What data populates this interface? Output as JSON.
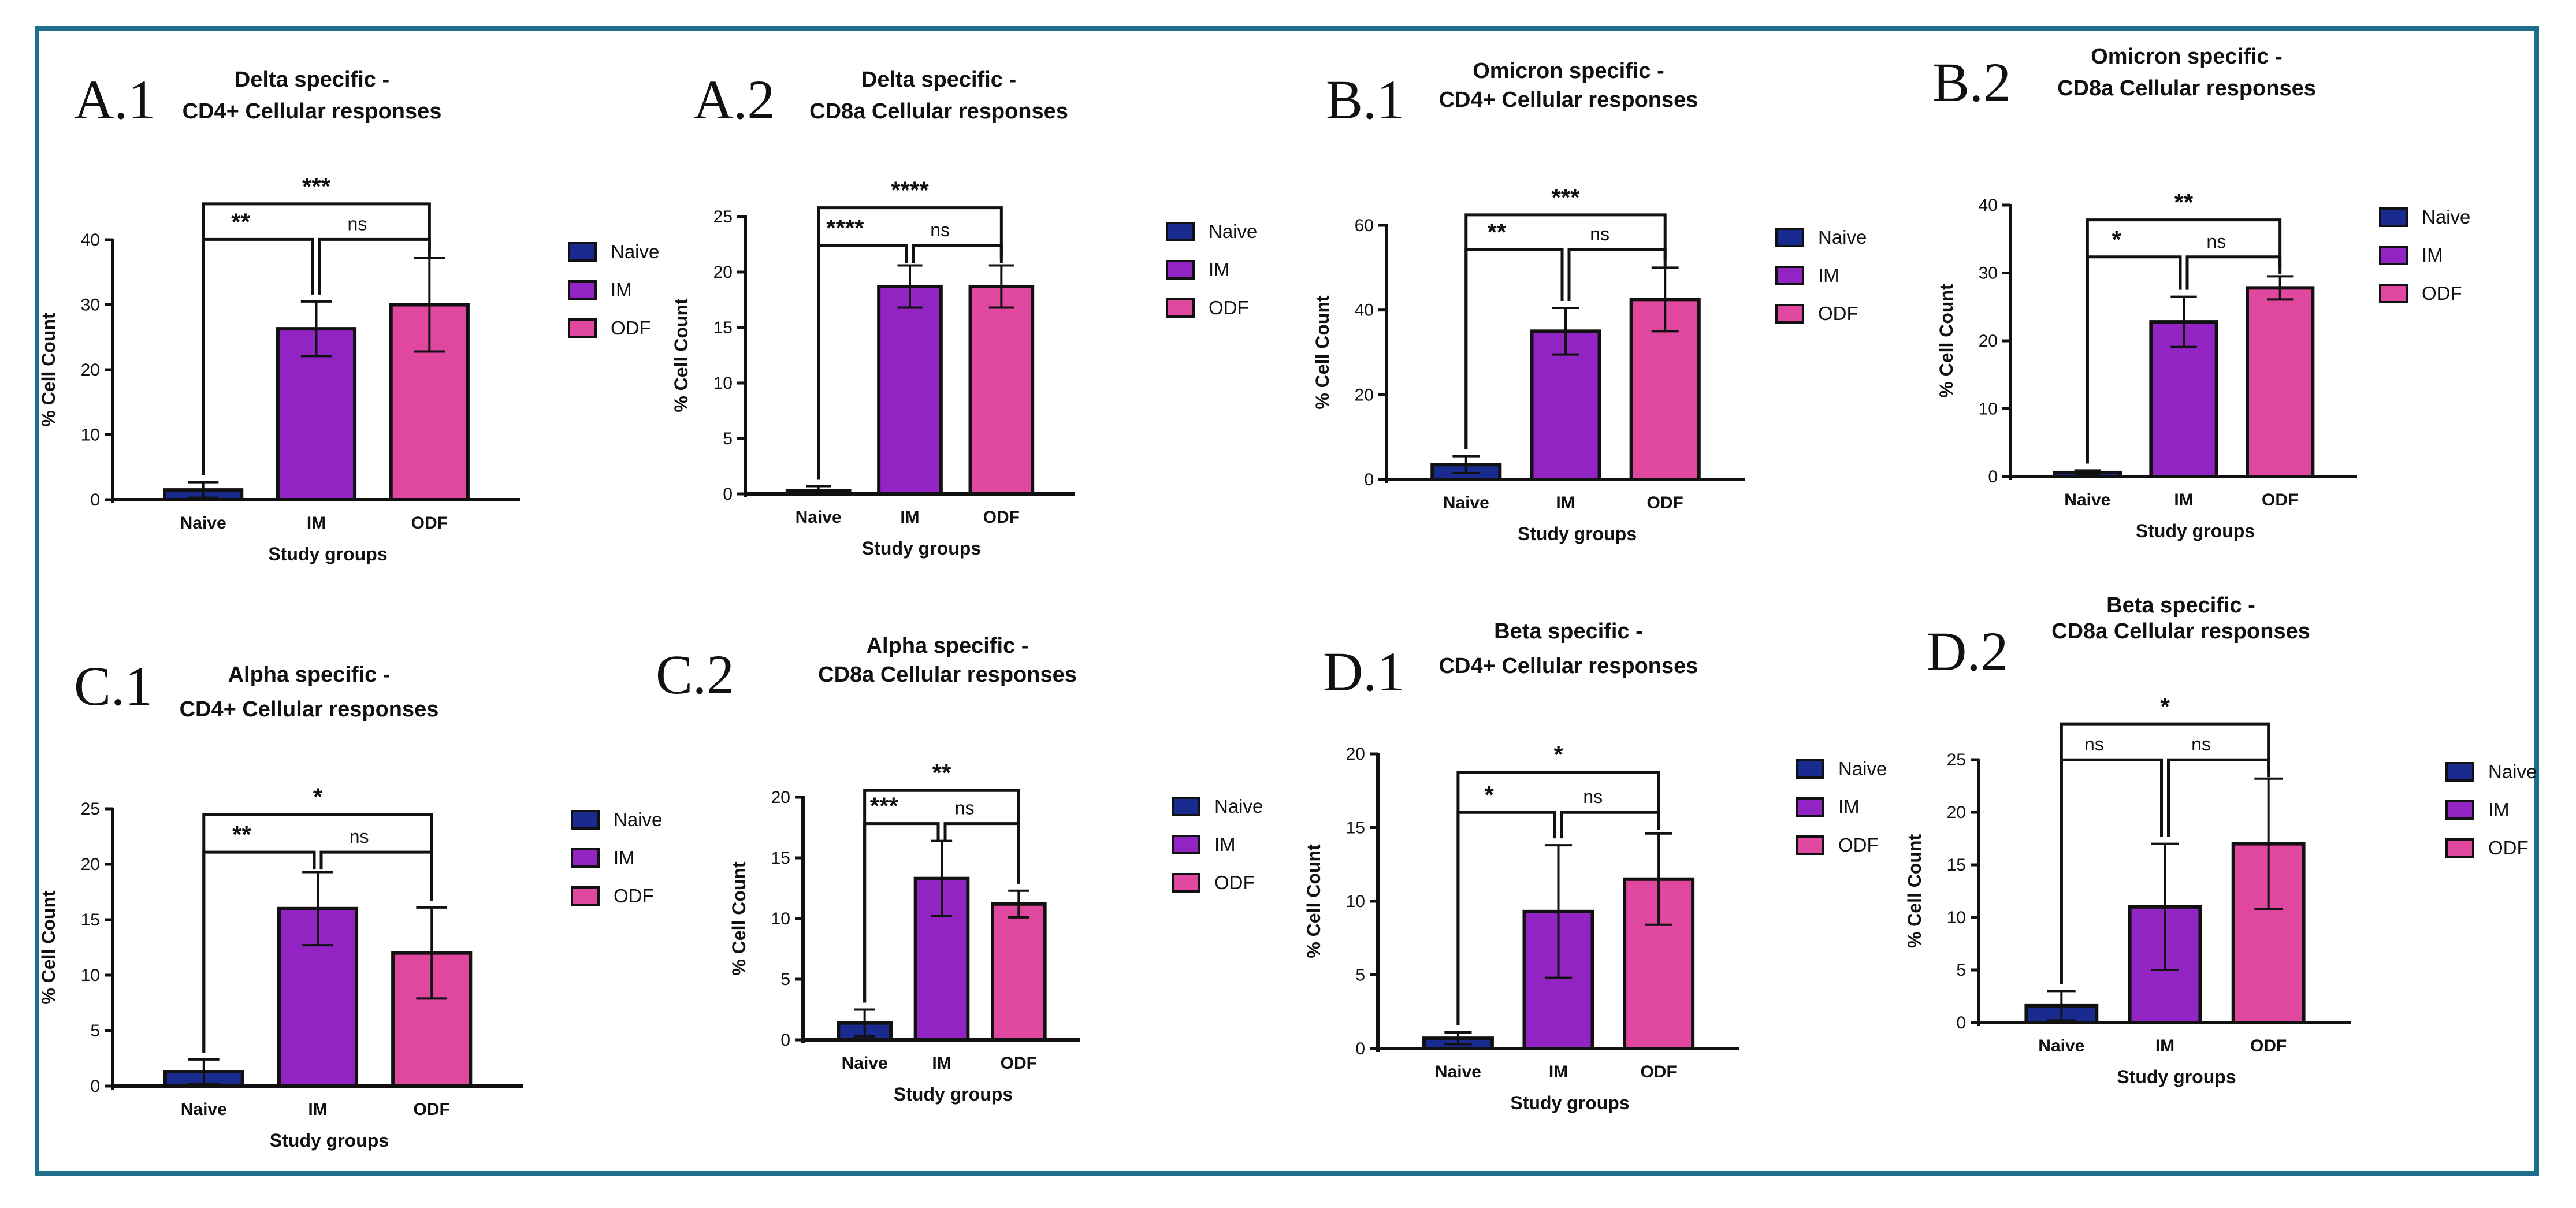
{
  "colors": {
    "Naive": "#1a2b8f",
    "IM": "#9224c4",
    "ODF": "#e0479e",
    "frame": "#1f6e8c"
  },
  "chart_data": [
    {
      "id": "A1",
      "panel": "A.1",
      "type": "bar",
      "title": [
        "Delta specific -",
        "CD4+ Cellular responses"
      ],
      "xlabel": "Study groups",
      "ylabel": "% Cell Count",
      "categories": [
        "Naive",
        "IM",
        "ODF"
      ],
      "values": [
        1.5,
        26.3,
        30.0
      ],
      "errors": [
        1.2,
        4.2,
        7.2
      ],
      "ylim": [
        0,
        40
      ],
      "yticks": [
        0,
        10,
        20,
        30,
        40
      ],
      "legend": [
        "Naive",
        "IM",
        "ODF"
      ],
      "comparisons": [
        {
          "groups": [
            "Naive",
            "IM"
          ],
          "label": "**"
        },
        {
          "groups": [
            "IM",
            "ODF"
          ],
          "label": "ns"
        },
        {
          "groups": [
            "Naive",
            "ODF"
          ],
          "label": "***"
        }
      ]
    },
    {
      "id": "A2",
      "panel": "A.2",
      "type": "bar",
      "title": [
        "Delta specific -",
        "CD8a Cellular responses"
      ],
      "xlabel": "Study groups",
      "ylabel": "% Cell Count",
      "categories": [
        "Naive",
        "IM",
        "ODF"
      ],
      "values": [
        0.3,
        18.7,
        18.7
      ],
      "errors": [
        0.4,
        1.9,
        1.9
      ],
      "ylim": [
        0,
        25
      ],
      "yticks": [
        0,
        5,
        10,
        15,
        20,
        25
      ],
      "legend": [
        "Naive",
        "IM",
        "ODF"
      ],
      "comparisons": [
        {
          "groups": [
            "Naive",
            "IM"
          ],
          "label": "****"
        },
        {
          "groups": [
            "IM",
            "ODF"
          ],
          "label": "ns"
        },
        {
          "groups": [
            "Naive",
            "ODF"
          ],
          "label": "****"
        }
      ]
    },
    {
      "id": "B1",
      "panel": "B.1",
      "type": "bar",
      "title": [
        "Omicron specific -",
        "CD4+  Cellular responses"
      ],
      "xlabel": "Study groups",
      "ylabel": "% Cell Count",
      "categories": [
        "Naive",
        "IM",
        "ODF"
      ],
      "values": [
        3.5,
        35.0,
        42.5
      ],
      "errors": [
        2.0,
        5.5,
        7.5
      ],
      "ylim": [
        0,
        60
      ],
      "yticks": [
        0,
        20,
        40,
        60
      ],
      "legend": [
        "Naive",
        "IM",
        "ODF"
      ],
      "comparisons": [
        {
          "groups": [
            "Naive",
            "IM"
          ],
          "label": "**"
        },
        {
          "groups": [
            "IM",
            "ODF"
          ],
          "label": "ns"
        },
        {
          "groups": [
            "Naive",
            "ODF"
          ],
          "label": "***"
        }
      ]
    },
    {
      "id": "B2",
      "panel": "B.2",
      "type": "bar",
      "title": [
        "Omicron specific -",
        "CD8a Cellular responses"
      ],
      "xlabel": "Study groups",
      "ylabel": "% Cell Count",
      "categories": [
        "Naive",
        "IM",
        "ODF"
      ],
      "values": [
        0.6,
        22.8,
        27.8
      ],
      "errors": [
        0.3,
        3.7,
        1.7
      ],
      "ylim": [
        0,
        40
      ],
      "yticks": [
        0,
        10,
        20,
        30,
        40
      ],
      "legend": [
        "Naive",
        "IM",
        "ODF"
      ],
      "comparisons": [
        {
          "groups": [
            "Naive",
            "IM"
          ],
          "label": "*"
        },
        {
          "groups": [
            "IM",
            "ODF"
          ],
          "label": "ns"
        },
        {
          "groups": [
            "Naive",
            "ODF"
          ],
          "label": "**"
        }
      ]
    },
    {
      "id": "C1",
      "panel": "C.1",
      "type": "bar",
      "title": [
        "Alpha specific -",
        "CD4+ Cellular responses"
      ],
      "xlabel": "Study groups",
      "ylabel": "% Cell Count",
      "categories": [
        "Naive",
        "IM",
        "ODF"
      ],
      "values": [
        1.3,
        16.0,
        12.0
      ],
      "errors": [
        1.1,
        3.3,
        4.1
      ],
      "ylim": [
        0,
        25
      ],
      "yticks": [
        0,
        5,
        10,
        15,
        20,
        25
      ],
      "legend": [
        "Naive",
        "IM",
        "ODF"
      ],
      "comparisons": [
        {
          "groups": [
            "Naive",
            "IM"
          ],
          "label": "**"
        },
        {
          "groups": [
            "IM",
            "ODF"
          ],
          "label": "ns"
        },
        {
          "groups": [
            "Naive",
            "ODF"
          ],
          "label": "*"
        }
      ]
    },
    {
      "id": "C2",
      "panel": "C.2",
      "type": "bar",
      "title": [
        "Alpha specific -",
        "CD8a Cellular responses"
      ],
      "xlabel": "Study groups",
      "ylabel": "% Cell Count",
      "categories": [
        "Naive",
        "IM",
        "ODF"
      ],
      "values": [
        1.4,
        13.3,
        11.2
      ],
      "errors": [
        1.1,
        3.1,
        1.1
      ],
      "ylim": [
        0,
        20
      ],
      "yticks": [
        0,
        5,
        10,
        15,
        20
      ],
      "legend": [
        "Naive",
        "IM",
        "ODF"
      ],
      "comparisons": [
        {
          "groups": [
            "Naive",
            "IM"
          ],
          "label": "***"
        },
        {
          "groups": [
            "IM",
            "ODF"
          ],
          "label": "ns"
        },
        {
          "groups": [
            "Naive",
            "ODF"
          ],
          "label": "**"
        }
      ]
    },
    {
      "id": "D1",
      "panel": "D.1",
      "type": "bar",
      "title": [
        "Beta specific -",
        "CD4+ Cellular responses"
      ],
      "xlabel": "Study groups",
      "ylabel": "% Cell Count",
      "categories": [
        "Naive",
        "IM",
        "ODF"
      ],
      "values": [
        0.7,
        9.3,
        11.5
      ],
      "errors": [
        0.4,
        4.5,
        3.1
      ],
      "ylim": [
        0,
        20
      ],
      "yticks": [
        0,
        5,
        10,
        15,
        20
      ],
      "legend": [
        "Naive",
        "IM",
        "ODF"
      ],
      "comparisons": [
        {
          "groups": [
            "Naive",
            "IM"
          ],
          "label": "*"
        },
        {
          "groups": [
            "IM",
            "ODF"
          ],
          "label": "ns"
        },
        {
          "groups": [
            "Naive",
            "ODF"
          ],
          "label": "*"
        }
      ]
    },
    {
      "id": "D2",
      "panel": "D.2",
      "type": "bar",
      "title": [
        "Beta specific -",
        "CD8a Cellular responses"
      ],
      "xlabel": "Study groups",
      "ylabel": "% Cell Count",
      "categories": [
        "Naive",
        "IM",
        "ODF"
      ],
      "values": [
        1.6,
        11.0,
        17.0
      ],
      "errors": [
        1.4,
        6.0,
        6.2
      ],
      "ylim": [
        0,
        25
      ],
      "yticks": [
        0,
        5,
        10,
        15,
        20,
        25
      ],
      "legend": [
        "Naive",
        "IM",
        "ODF"
      ],
      "comparisons": [
        {
          "groups": [
            "Naive",
            "IM"
          ],
          "label": "ns"
        },
        {
          "groups": [
            "IM",
            "ODF"
          ],
          "label": "ns"
        },
        {
          "groups": [
            "Naive",
            "ODF"
          ],
          "label": "*"
        }
      ]
    }
  ]
}
